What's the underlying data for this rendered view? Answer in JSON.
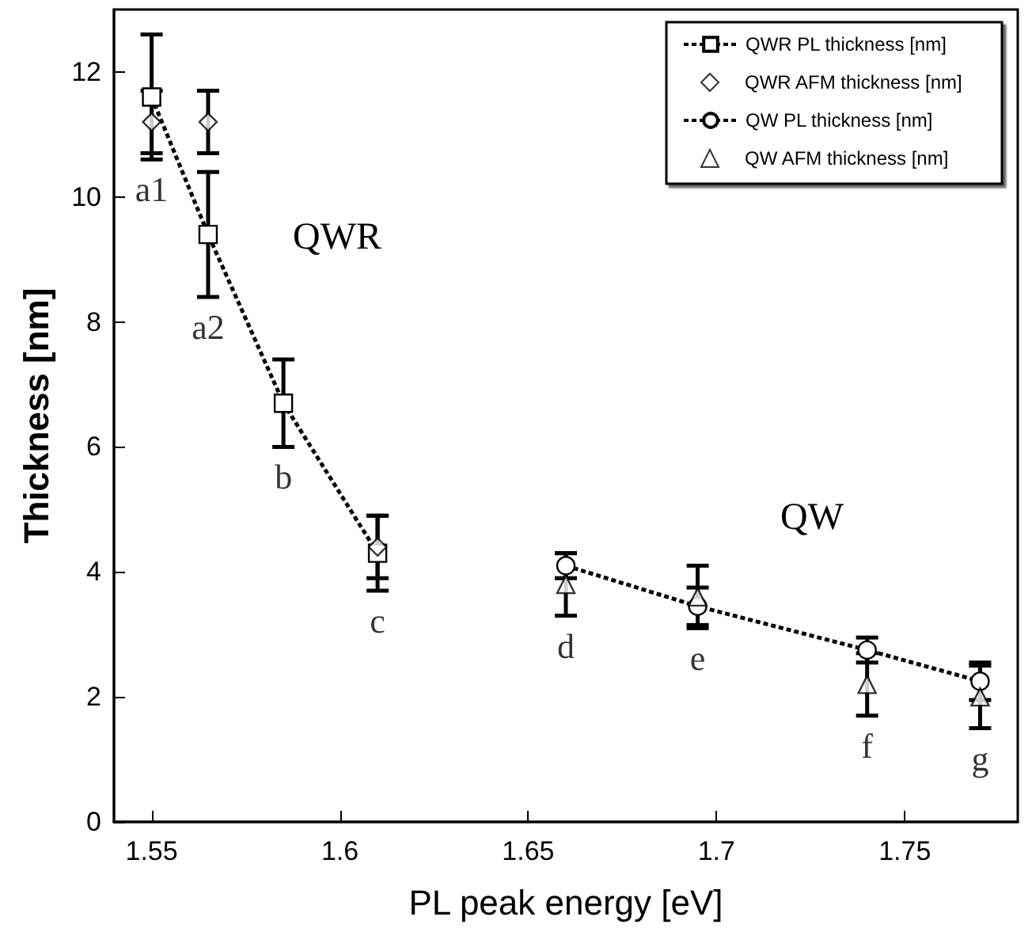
{
  "chart_data": {
    "type": "line",
    "xlabel": "PL peak energy [eV]",
    "ylabel": "Thickness [nm]",
    "xlim": [
      1.54,
      1.78
    ],
    "xticks": [
      1.55,
      1.6,
      1.65,
      1.7,
      1.75
    ],
    "ylim": [
      0,
      13
    ],
    "yticks": [
      0,
      2,
      4,
      6,
      8,
      10,
      12
    ],
    "grid": false,
    "legend": "top right",
    "series": [
      {
        "name": "QWR PL thickness [nm]",
        "color": "#000000",
        "marker": "square",
        "line_style": "dotted",
        "x": [
          1.55,
          1.565,
          1.585,
          1.61
        ],
        "values": [
          11.6,
          9.4,
          6.7,
          4.3
        ],
        "errors": [
          1,
          1,
          0.7,
          0.6
        ]
      },
      {
        "name": "QWR AFM thickness [nm]",
        "type": "scatter",
        "color": "#000000",
        "marker": "diamond",
        "x": [
          1.55,
          1.565,
          1.61
        ],
        "values": [
          11.2,
          11.2,
          4.4
        ],
        "errors": [
          0.5,
          0.5,
          0.5
        ]
      },
      {
        "name": "QW PL thickness [nm]",
        "color": "#000000",
        "marker": "circle",
        "line_style": "dotted",
        "x": [
          1.66,
          1.695,
          1.74,
          1.77
        ],
        "values": [
          4.1,
          3.45,
          2.75,
          2.25
        ],
        "errors": [
          0.2,
          0.3,
          0.2,
          0.3
        ]
      },
      {
        "name": "QW AFM thickness [nm]",
        "type": "scatter",
        "color": "#000000",
        "marker": "triangle",
        "x": [
          1.66,
          1.695,
          1.74,
          1.77
        ],
        "values": [
          3.8,
          3.6,
          2.2,
          2.0
        ],
        "errors": [
          0.5,
          0.5,
          0.5,
          0.5
        ]
      }
    ],
    "annotations": [
      {
        "text": "a1",
        "x": 1.55,
        "y": 11.6
      },
      {
        "text": "a2",
        "x": 1.565,
        "y": 9.4
      },
      {
        "text": "b",
        "x": 1.585,
        "y": 6.7
      },
      {
        "text": "c",
        "x": 1.61,
        "y": 4.3
      },
      {
        "text": "d",
        "x": 1.66,
        "y": 4.1
      },
      {
        "text": "e",
        "x": 1.695,
        "y": 3.45
      },
      {
        "text": "f",
        "x": 1.74,
        "y": 2.75
      },
      {
        "text": "g",
        "x": 1.77,
        "y": 2.25
      },
      "QWR",
      "QW"
    ]
  }
}
